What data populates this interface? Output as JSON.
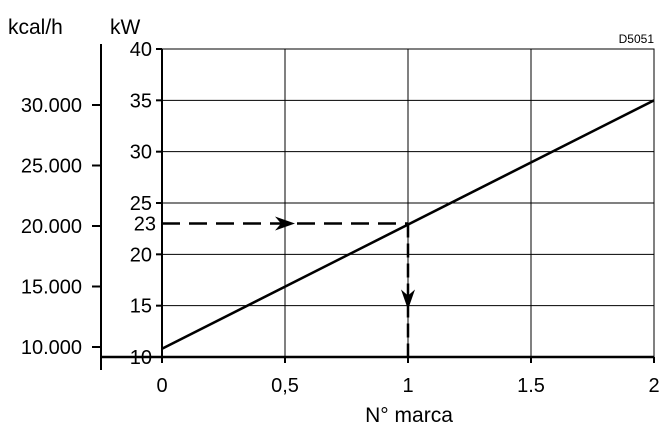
{
  "chart_data": {
    "type": "line",
    "code": "D5051",
    "xlabel": "N° marca",
    "y_left_unit": "kcal/h",
    "y_right_unit": "kW",
    "xlim": [
      0,
      2
    ],
    "ylim": [
      10,
      40
    ],
    "x_ticks": [
      {
        "value": 0,
        "label": "0"
      },
      {
        "value": 0.5,
        "label": "0,5"
      },
      {
        "value": 1,
        "label": "1"
      },
      {
        "value": 1.5,
        "label": "1.5"
      },
      {
        "value": 2,
        "label": "2"
      }
    ],
    "kw_ticks": [
      {
        "value": 10,
        "label": "10"
      },
      {
        "value": 15,
        "label": "15"
      },
      {
        "value": 20,
        "label": "20"
      },
      {
        "value": 25,
        "label": "25"
      },
      {
        "value": 30,
        "label": "30"
      },
      {
        "value": 35,
        "label": "35"
      },
      {
        "value": 40,
        "label": "40"
      }
    ],
    "kcal_ticks": [
      {
        "value": 10000,
        "label": "10.000"
      },
      {
        "value": 15000,
        "label": "15.000"
      },
      {
        "value": 20000,
        "label": "20.000"
      },
      {
        "value": 25000,
        "label": "25.000"
      },
      {
        "value": 30000,
        "label": "30.000"
      }
    ],
    "grid": true,
    "series": [
      {
        "x": [
          0,
          2
        ],
        "y": [
          10.8,
          35
        ]
      }
    ],
    "annotation": {
      "x": 1,
      "y": 23,
      "label": "23"
    },
    "colors": {
      "line": "#000000",
      "grid": "#000000",
      "background": "#ffffff"
    }
  }
}
